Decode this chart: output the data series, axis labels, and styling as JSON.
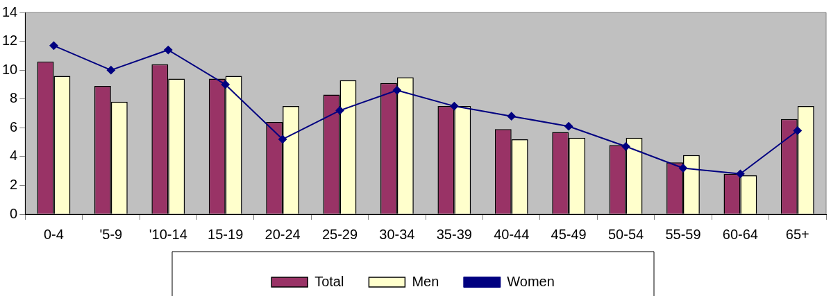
{
  "chart_data": {
    "type": "bar",
    "categories": [
      "0-4",
      "'5-9",
      "'10-14",
      "15-19",
      "20-24",
      "25-29",
      "30-34",
      "35-39",
      "40-44",
      "45-49",
      "50-54",
      "55-59",
      "60-64",
      "65+"
    ],
    "series": [
      {
        "name": "Total",
        "color": "#993366",
        "values": [
          10.6,
          8.9,
          10.4,
          9.4,
          6.4,
          8.3,
          9.1,
          7.5,
          5.9,
          5.7,
          4.8,
          3.6,
          2.8,
          6.6
        ]
      },
      {
        "name": "Men",
        "color": "#ffffcc",
        "values": [
          9.6,
          7.8,
          9.4,
          9.6,
          7.5,
          9.3,
          9.5,
          7.5,
          5.2,
          5.3,
          5.3,
          4.1,
          2.7,
          7.5
        ]
      },
      {
        "name": "Women",
        "type": "line",
        "color": "#000080",
        "values": [
          11.7,
          10.0,
          11.4,
          9.0,
          5.2,
          7.2,
          8.6,
          7.5,
          6.8,
          6.1,
          4.7,
          3.2,
          2.8,
          5.8
        ]
      }
    ],
    "ylim": [
      0,
      14
    ],
    "yticks": [
      0,
      2,
      4,
      6,
      8,
      10,
      12,
      14
    ],
    "grid": false,
    "legend": "bottom",
    "marker": "diamond"
  }
}
